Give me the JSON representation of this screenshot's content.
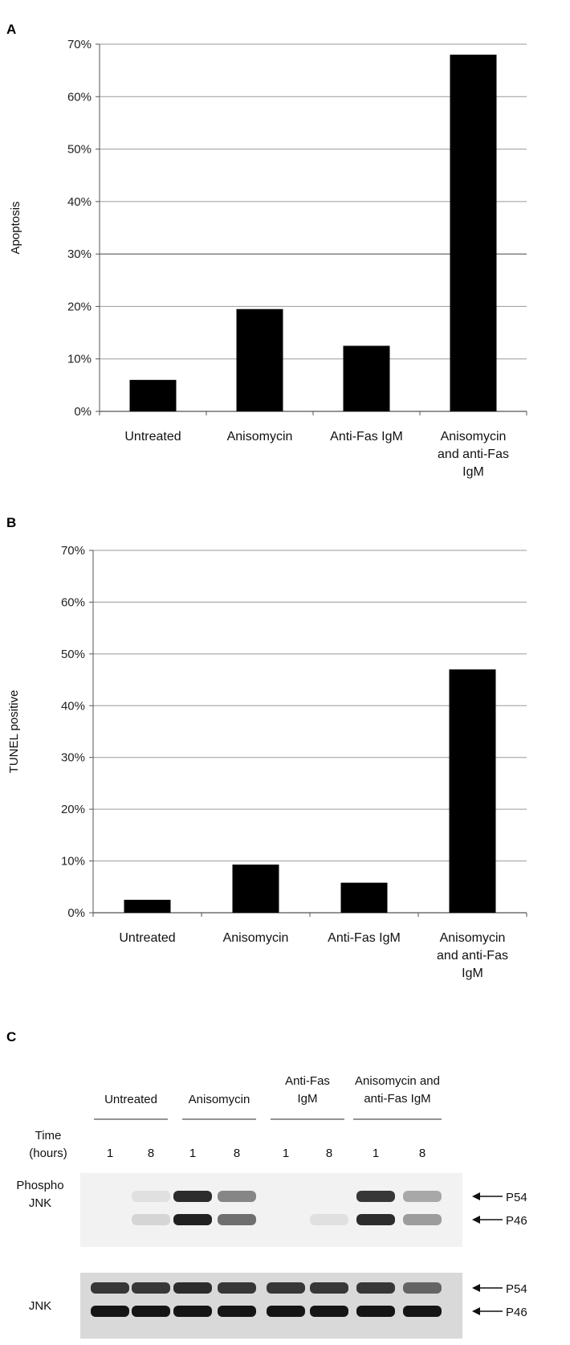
{
  "panels": [
    "A",
    "B",
    "C"
  ],
  "chart_data": [
    {
      "type": "bar",
      "panel": "A",
      "ylabel": "Apoptosis",
      "categories": [
        [
          "Untreated"
        ],
        [
          "Anisomycin"
        ],
        [
          "Anti-Fas IgM"
        ],
        [
          "Anisomycin",
          "and anti-Fas",
          "IgM"
        ]
      ],
      "values": [
        6,
        19.5,
        12.5,
        68
      ],
      "ylim": [
        0,
        70
      ],
      "yticks": [
        "0%",
        "10%",
        "20%",
        "30%",
        "40%",
        "50%",
        "60%",
        "70%"
      ],
      "grid": true,
      "bar_color": "#000000"
    },
    {
      "type": "bar",
      "panel": "B",
      "ylabel": "TUNEL positive",
      "categories": [
        [
          "Untreated"
        ],
        [
          "Anisomycin"
        ],
        [
          "Anti-Fas IgM"
        ],
        [
          "Anisomycin",
          "and anti-Fas",
          "IgM"
        ]
      ],
      "values": [
        2.5,
        9.3,
        5.8,
        47
      ],
      "ylim": [
        0,
        70
      ],
      "yticks": [
        "0%",
        "10%",
        "20%",
        "30%",
        "40%",
        "50%",
        "60%",
        "70%"
      ],
      "grid": true,
      "bar_color": "#000000"
    }
  ],
  "blot": {
    "groups": [
      [
        "Untreated"
      ],
      [
        "Anisomycin"
      ],
      [
        "Anti-Fas",
        "IgM"
      ],
      [
        "Anisomycin and",
        "anti-Fas IgM"
      ]
    ],
    "time_label": [
      "Time",
      "(hours)"
    ],
    "times": [
      "1",
      "8",
      "1",
      "8",
      "1",
      "8",
      "1",
      "8"
    ],
    "rows": [
      {
        "label": [
          "Phospho",
          "JNK"
        ],
        "markers": [
          "P54",
          "P46"
        ],
        "p54": [
          0,
          0.05,
          0.85,
          0.45,
          0,
          0,
          0.8,
          0.3
        ],
        "p46": [
          0,
          0.1,
          0.9,
          0.55,
          0,
          0.05,
          0.85,
          0.35
        ]
      },
      {
        "label": [
          "JNK"
        ],
        "markers": [
          "P54",
          "P46"
        ],
        "p54": [
          0.8,
          0.8,
          0.85,
          0.8,
          0.8,
          0.8,
          0.8,
          0.6
        ],
        "p46": [
          0.95,
          0.95,
          0.95,
          0.95,
          0.95,
          0.95,
          0.95,
          0.95
        ]
      }
    ]
  }
}
